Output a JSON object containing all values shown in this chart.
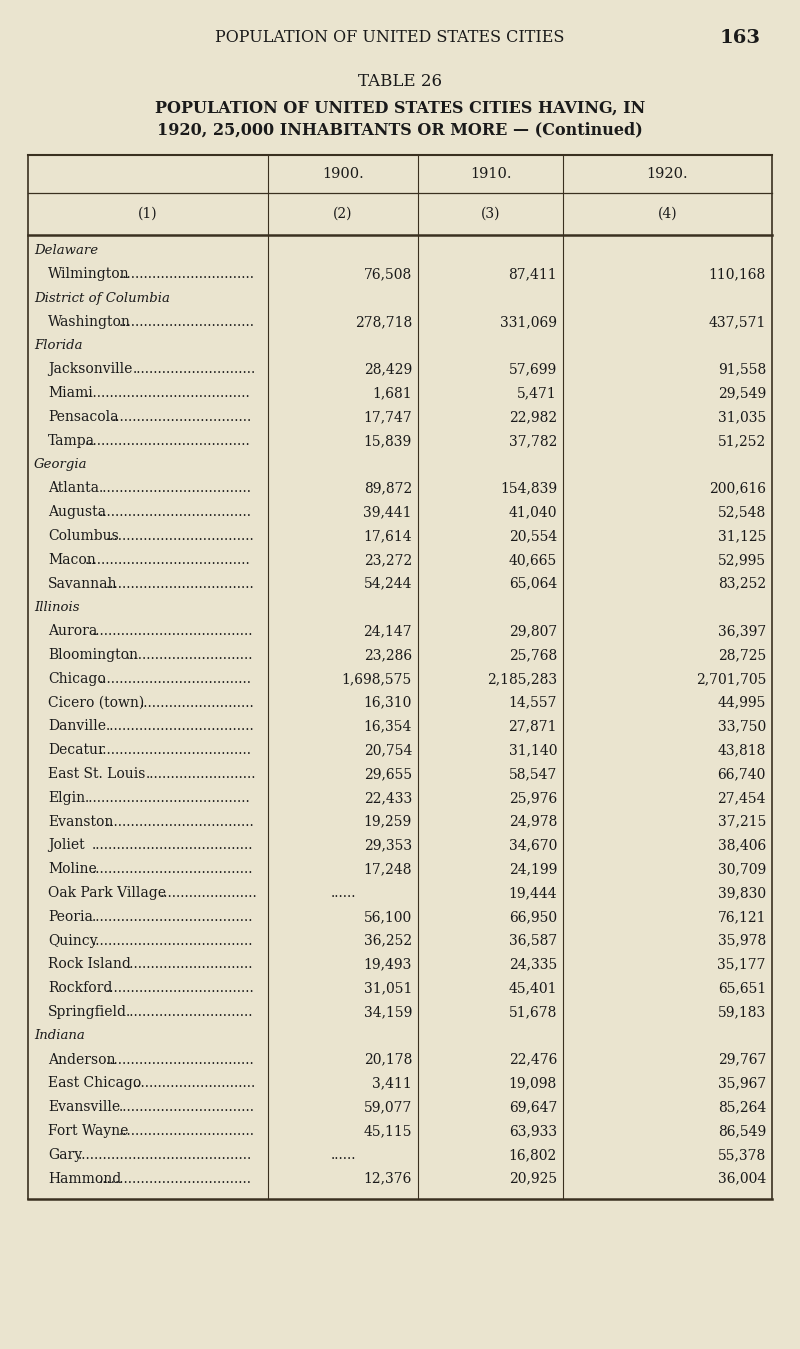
{
  "page_header": "POPULATION OF UNITED STATES CITIES",
  "page_number": "163",
  "table_title_line1": "TABLE 26",
  "table_title_line2": "POPULATION OF UNITED STATES CITIES HAVING, IN",
  "table_title_line3": "1920, 25,000 INHABITANTS OR MORE — (Continued)",
  "col_headers_top": [
    "1900.",
    "1910.",
    "1920."
  ],
  "col_headers_bottom": [
    "(1)",
    "(2)",
    "(3)",
    "(4)"
  ],
  "background_color": "#EAE4CF",
  "rows": [
    {
      "state": "Delaware",
      "city": null,
      "c1900": null,
      "c1910": null,
      "c1920": null
    },
    {
      "state": null,
      "city": "Wilmington",
      "c1900": "76,508",
      "c1910": "87,411",
      "c1920": "110,168"
    },
    {
      "state": "District of Columbia",
      "city": null,
      "c1900": null,
      "c1910": null,
      "c1920": null
    },
    {
      "state": null,
      "city": "Washington",
      "c1900": "278,718",
      "c1910": "331,069",
      "c1920": "437,571"
    },
    {
      "state": "Florida",
      "city": null,
      "c1900": null,
      "c1910": null,
      "c1920": null
    },
    {
      "state": null,
      "city": "Jacksonville",
      "c1900": "28,429",
      "c1910": "57,699",
      "c1920": "91,558"
    },
    {
      "state": null,
      "city": "Miami",
      "c1900": "1,681",
      "c1910": "5,471",
      "c1920": "29,549"
    },
    {
      "state": null,
      "city": "Pensacola",
      "c1900": "17,747",
      "c1910": "22,982",
      "c1920": "31,035"
    },
    {
      "state": null,
      "city": "Tampa",
      "c1900": "15,839",
      "c1910": "37,782",
      "c1920": "51,252"
    },
    {
      "state": "Georgia",
      "city": null,
      "c1900": null,
      "c1910": null,
      "c1920": null
    },
    {
      "state": null,
      "city": "Atlanta",
      "c1900": "89,872",
      "c1910": "154,839",
      "c1920": "200,616"
    },
    {
      "state": null,
      "city": "Augusta",
      "c1900": "39,441",
      "c1910": "41,040",
      "c1920": "52,548"
    },
    {
      "state": null,
      "city": "Columbus",
      "c1900": "17,614",
      "c1910": "20,554",
      "c1920": "31,125"
    },
    {
      "state": null,
      "city": "Macon",
      "c1900": "23,272",
      "c1910": "40,665",
      "c1920": "52,995"
    },
    {
      "state": null,
      "city": "Savannah",
      "c1900": "54,244",
      "c1910": "65,064",
      "c1920": "83,252"
    },
    {
      "state": "Illinois",
      "city": null,
      "c1900": null,
      "c1910": null,
      "c1920": null
    },
    {
      "state": null,
      "city": "Aurora",
      "c1900": "24,147",
      "c1910": "29,807",
      "c1920": "36,397"
    },
    {
      "state": null,
      "city": "Bloomington",
      "c1900": "23,286",
      "c1910": "25,768",
      "c1920": "28,725"
    },
    {
      "state": null,
      "city": "Chicago",
      "c1900": "1,698,575",
      "c1910": "2,185,283",
      "c1920": "2,701,705"
    },
    {
      "state": null,
      "city": "Cicero (town)",
      "c1900": "16,310",
      "c1910": "14,557",
      "c1920": "44,995"
    },
    {
      "state": null,
      "city": "Danville",
      "c1900": "16,354",
      "c1910": "27,871",
      "c1920": "33,750"
    },
    {
      "state": null,
      "city": "Decatur",
      "c1900": "20,754",
      "c1910": "31,140",
      "c1920": "43,818"
    },
    {
      "state": null,
      "city": "East St. Louis",
      "c1900": "29,655",
      "c1910": "58,547",
      "c1920": "66,740"
    },
    {
      "state": null,
      "city": "Elgin",
      "c1900": "22,433",
      "c1910": "25,976",
      "c1920": "27,454"
    },
    {
      "state": null,
      "city": "Evanston",
      "c1900": "19,259",
      "c1910": "24,978",
      "c1920": "37,215"
    },
    {
      "state": null,
      "city": "Joliet",
      "c1900": "29,353",
      "c1910": "34,670",
      "c1920": "38,406"
    },
    {
      "state": null,
      "city": "Moline",
      "c1900": "17,248",
      "c1910": "24,199",
      "c1920": "30,709"
    },
    {
      "state": null,
      "city": "Oak Park Village",
      "c1900": "......",
      "c1910": "19,444",
      "c1920": "39,830"
    },
    {
      "state": null,
      "city": "Peoria",
      "c1900": "56,100",
      "c1910": "66,950",
      "c1920": "76,121"
    },
    {
      "state": null,
      "city": "Quincy",
      "c1900": "36,252",
      "c1910": "36,587",
      "c1920": "35,978"
    },
    {
      "state": null,
      "city": "Rock Island",
      "c1900": "19,493",
      "c1910": "24,335",
      "c1920": "35,177"
    },
    {
      "state": null,
      "city": "Rockford",
      "c1900": "31,051",
      "c1910": "45,401",
      "c1920": "65,651"
    },
    {
      "state": null,
      "city": "Springfield",
      "c1900": "34,159",
      "c1910": "51,678",
      "c1920": "59,183"
    },
    {
      "state": "Indiana",
      "city": null,
      "c1900": null,
      "c1910": null,
      "c1920": null
    },
    {
      "state": null,
      "city": "Anderson",
      "c1900": "20,178",
      "c1910": "22,476",
      "c1920": "29,767"
    },
    {
      "state": null,
      "city": "East Chicago",
      "c1900": "3,411",
      "c1910": "19,098",
      "c1920": "35,967"
    },
    {
      "state": null,
      "city": "Evansville",
      "c1900": "59,077",
      "c1910": "69,647",
      "c1920": "85,264"
    },
    {
      "state": null,
      "city": "Fort Wayne",
      "c1900": "45,115",
      "c1910": "63,933",
      "c1920": "86,549"
    },
    {
      "state": null,
      "city": "Gary",
      "c1900": "......",
      "c1910": "16,802",
      "c1920": "55,378"
    },
    {
      "state": null,
      "city": "Hammond",
      "c1900": "12,376",
      "c1910": "20,925",
      "c1920": "36,004"
    }
  ]
}
